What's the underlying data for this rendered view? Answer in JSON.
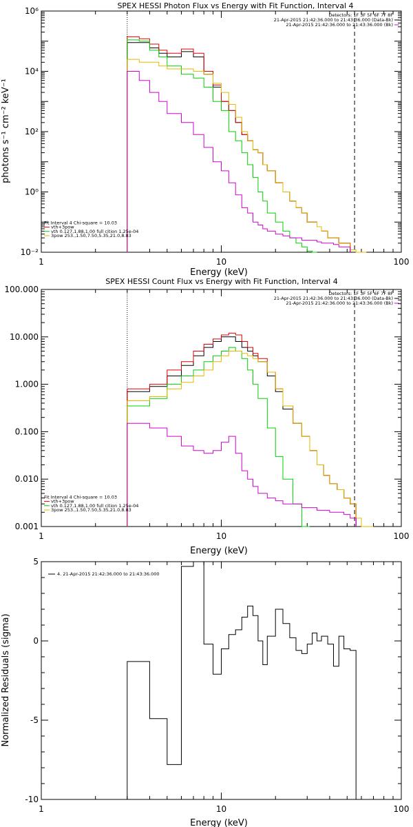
{
  "colors": {
    "black": "#000000",
    "red": "#e00000",
    "green": "#00d000",
    "orange": "#e6b800",
    "magenta": "#d000d0"
  },
  "chart_data": [
    {
      "type": "line",
      "title": "SPEX HESSI Photon Flux vs Energy with Fit Function, Interval 4",
      "xlabel": "Energy (keV)",
      "ylabel": "photons s⁻¹ cm⁻² keV⁻¹",
      "xscale": "log",
      "yscale": "log",
      "xlim": [
        1,
        100
      ],
      "ylim": [
        0.01,
        1000000
      ],
      "xticks": [
        "1",
        "10",
        "100"
      ],
      "yticks": [
        "10⁻²",
        "10⁰",
        "10²",
        "10⁴",
        "10⁶"
      ],
      "vlines": {
        "dotted": 3.0,
        "dashed": 55
      },
      "legend_top_right": [
        "Detectors: 1F 3F 5F 6F 7F 8F",
        "21-Apr-2015 21:42:36.000 to 21:43:36.000 (Data-Bk)",
        "21-Apr-2015 21:42:36.000 to 21:43:36.000 (Bk)"
      ],
      "legend_bottom_left": [
        "Fit Interval 4   Chi-square = 10.03",
        "vth+3pow",
        "vth 0.127,1.88,1.00  full cition 1.25e-04",
        "3pow 253.,1.50,7.50,5.35,21.0,8.83"
      ],
      "edges": [
        3.0,
        3.5,
        4.0,
        4.5,
        5.0,
        6.0,
        7.0,
        8.0,
        9.0,
        10.0,
        11.0,
        12.0,
        13.0,
        14.0,
        15.0,
        16.0,
        17.0,
        18.0,
        20.0,
        22.0,
        24.0,
        26.0,
        28.0,
        30.0,
        32.0,
        34.0,
        36.0,
        39.0,
        42.0,
        45.0,
        48.0,
        52.0,
        56.0,
        60.0,
        64.0
      ],
      "series": [
        {
          "color": "black",
          "values": [
            90000,
            90000,
            60000,
            40000,
            30000,
            45000,
            30000,
            8000,
            3000,
            1000,
            500,
            200,
            80,
            50,
            25,
            20,
            8,
            5,
            2,
            1,
            0.5,
            0.3,
            0.2,
            0.1,
            0.1,
            0.07,
            0.05,
            0.03,
            0.03,
            0.02,
            0.02,
            null,
            null,
            null
          ]
        },
        {
          "color": "red",
          "values": [
            140000,
            120000,
            80000,
            50000,
            40000,
            55000,
            40000,
            10000,
            3500,
            1000,
            500,
            200,
            80,
            50,
            25,
            20,
            8,
            5,
            2,
            1,
            0.5,
            0.3,
            0.2,
            0.1,
            0.1,
            0.07,
            0.05,
            0.03,
            0.03,
            0.02,
            0.02,
            null,
            null,
            null
          ]
        },
        {
          "color": "green",
          "values": [
            110000,
            100000,
            50000,
            30000,
            15000,
            8000,
            6000,
            3000,
            1000,
            500,
            100,
            50,
            20,
            8,
            3,
            1,
            0.5,
            0.2,
            0.1,
            0.05,
            0.03,
            0.02,
            0.015,
            0.011,
            0.01,
            null,
            null,
            null,
            null,
            null,
            null,
            null,
            null,
            null
          ]
        },
        {
          "color": "orange",
          "values": [
            25000,
            20000,
            20000,
            15000,
            12000,
            12000,
            10000,
            8000,
            4000,
            2000,
            800,
            300,
            100,
            50,
            25,
            20,
            8,
            5,
            2,
            1,
            0.5,
            0.3,
            0.2,
            0.1,
            0.1,
            0.07,
            0.05,
            0.03,
            0.03,
            0.02,
            0.02,
            0.012,
            0.01,
            0.01
          ]
        },
        {
          "color": "magenta",
          "values": [
            10000,
            5000,
            2000,
            1000,
            400,
            200,
            80,
            30,
            10,
            5,
            2,
            0.8,
            0.3,
            0.2,
            0.1,
            0.08,
            0.06,
            0.05,
            0.04,
            0.035,
            0.03,
            0.03,
            0.025,
            0.025,
            0.025,
            0.022,
            0.02,
            0.02,
            0.018,
            0.015,
            0.015,
            null,
            null,
            null
          ]
        }
      ]
    },
    {
      "type": "line",
      "title": "SPEX HESSI Count Flux vs Energy with Fit Function, Interval 4",
      "xlabel": "Energy (keV)",
      "ylabel": "",
      "xscale": "log",
      "yscale": "log",
      "xlim": [
        1,
        100
      ],
      "ylim": [
        0.001,
        100
      ],
      "xticks": [
        "1",
        "10",
        "100"
      ],
      "yticks": [
        "0.001",
        "0.010",
        "0.100",
        "1.000",
        "10.000",
        "100.000"
      ],
      "vlines": {
        "dotted": 3.0,
        "dashed": 55
      },
      "legend_top_right": [
        "Detectors: 1F 3F 5F 6F 7F 8F",
        "21-Apr-2015 21:42:36.000 to 21:43:36.000 (Data-Bk)",
        "21-Apr-2015 21:42:36.000 to 21:43:36.000 (Bk)"
      ],
      "legend_bottom_left": [
        "Fit Interval 4   Chi-square = 10.03",
        "vth+3pow",
        "vth 0.127,1.88,1.00  full cition 1.25e-04",
        "3pow 253.,1.50,7.50,5.35,21.0,8.83"
      ],
      "edges": [
        3.0,
        4.0,
        5.0,
        6.0,
        7.0,
        8.0,
        9.0,
        10.0,
        11.0,
        12.0,
        13.0,
        14.0,
        15.0,
        16.0,
        18.0,
        20.0,
        22.0,
        25.0,
        28.0,
        31.0,
        34.0,
        37.0,
        40.0,
        44.0,
        48.0,
        52.0,
        56.0,
        60.0,
        64.0,
        70.0
      ],
      "series": [
        {
          "color": "black",
          "values": [
            0.7,
            0.9,
            1.5,
            2.5,
            4.0,
            6.0,
            8.0,
            10.0,
            10.0,
            8.0,
            6.0,
            5.0,
            4.0,
            3.0,
            1.5,
            0.7,
            0.3,
            0.15,
            0.08,
            0.04,
            0.02,
            0.012,
            0.008,
            0.006,
            0.004,
            0.003,
            null,
            null,
            null
          ]
        },
        {
          "color": "red",
          "values": [
            0.8,
            1.0,
            2.0,
            3.0,
            5.0,
            7.0,
            9.0,
            11.0,
            12.0,
            11.0,
            8.0,
            6.0,
            4.5,
            3.5,
            1.8,
            0.8,
            0.35,
            0.15,
            0.08,
            0.04,
            0.02,
            0.012,
            0.008,
            0.006,
            0.004,
            0.003,
            null,
            null,
            null
          ]
        },
        {
          "color": "green",
          "values": [
            0.35,
            0.5,
            1.0,
            1.5,
            2.0,
            3.0,
            4.0,
            5.0,
            6.0,
            5.0,
            3.5,
            2.0,
            1.0,
            0.5,
            0.12,
            0.03,
            0.01,
            0.003,
            0.001,
            null,
            null,
            null,
            null,
            null,
            null,
            null,
            null,
            null,
            null
          ]
        },
        {
          "color": "orange",
          "values": [
            0.45,
            0.55,
            0.8,
            1.1,
            1.5,
            2.0,
            3.0,
            4.0,
            5.0,
            5.0,
            4.5,
            4.0,
            3.5,
            3.0,
            1.8,
            0.8,
            0.35,
            0.15,
            0.08,
            0.04,
            0.02,
            0.012,
            0.008,
            0.006,
            0.004,
            0.003,
            0.0015,
            0.001,
            0.001
          ]
        },
        {
          "color": "magenta",
          "values": [
            0.15,
            0.12,
            0.08,
            0.05,
            0.04,
            0.035,
            0.04,
            0.06,
            0.08,
            0.035,
            0.015,
            0.01,
            0.007,
            0.005,
            0.004,
            0.0035,
            0.003,
            0.003,
            0.0025,
            0.0025,
            0.0022,
            0.0022,
            0.002,
            0.002,
            0.0018,
            0.0015,
            null,
            null,
            null
          ]
        }
      ]
    },
    {
      "type": "line",
      "title": "",
      "xlabel": "Energy (keV)",
      "ylabel": "Normalized Residuals (sigma)",
      "xscale": "log",
      "yscale": "linear",
      "xlim": [
        1,
        100
      ],
      "ylim": [
        -10,
        5
      ],
      "xticks": [
        "1",
        "10",
        "100"
      ],
      "yticks": [
        "-10",
        "-5",
        "0",
        "5"
      ],
      "legend_top_left": [
        "4. 21-Apr-2015 21:42:36.000 to 21:43:36.000"
      ],
      "edges": [
        3.0,
        4.0,
        5.0,
        6.0,
        7.0,
        8.0,
        9.0,
        10.0,
        11.0,
        12.0,
        13.0,
        14.0,
        15.0,
        16.0,
        17.0,
        18.0,
        20.0,
        22.0,
        24.0,
        26.0,
        28.0,
        30.0,
        32.0,
        34.0,
        36.0,
        39.0,
        42.0,
        45.0,
        48.0,
        52.0,
        56.0
      ],
      "start_y": -10,
      "end_y": -10,
      "series": [
        {
          "color": "black",
          "values": [
            -1.3,
            -4.9,
            -7.8,
            4.7,
            5.0,
            -0.2,
            -2.1,
            -0.5,
            0.4,
            0.7,
            1.5,
            2.2,
            1.6,
            0.0,
            -1.5,
            0.3,
            2.0,
            1.1,
            0.2,
            -0.6,
            -0.8,
            -0.2,
            0.5,
            0.0,
            0.3,
            -0.2,
            -1.6,
            0.3,
            -0.5,
            -0.6
          ]
        }
      ]
    }
  ]
}
